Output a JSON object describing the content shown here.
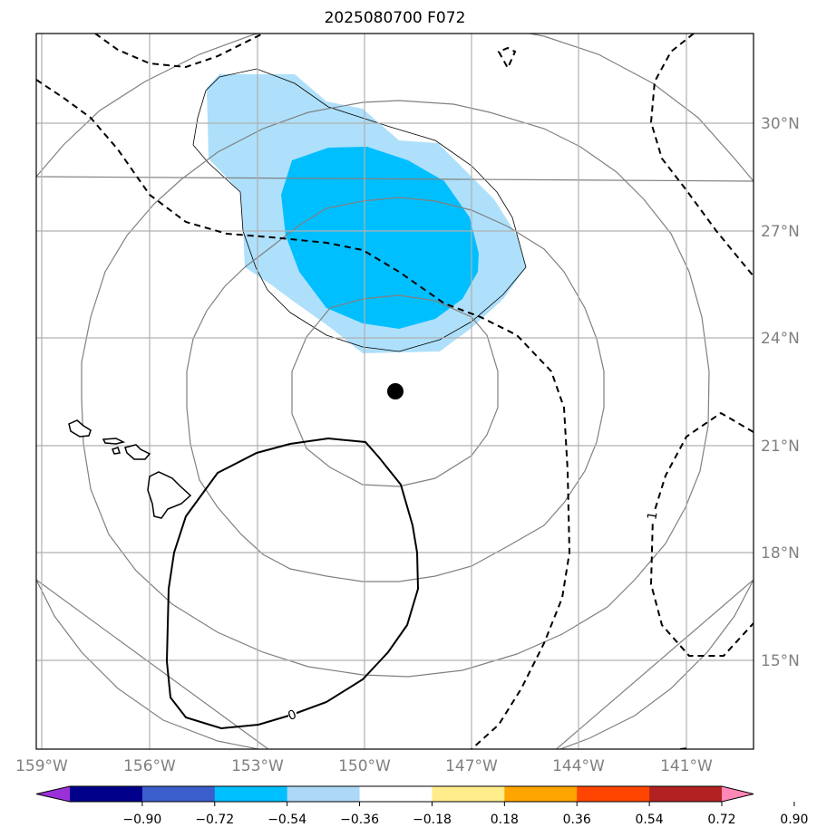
{
  "title": "2025080700 F072",
  "map": {
    "lon_labels": [
      "159°W",
      "156°W",
      "153°W",
      "150°W",
      "147°W",
      "144°W",
      "141°W"
    ],
    "lat_labels": [
      "30°N",
      "27°N",
      "24°N",
      "21°N",
      "18°N",
      "15°N"
    ],
    "storm_center": {
      "lon": -149.1,
      "lat": 22.5
    },
    "contour_labels": [
      "0",
      "1"
    ],
    "colors": {
      "gridline": "#b0b0b0",
      "axis_label": "#808080",
      "shade_light": "#aee0fb",
      "shade_dark": "#00bfff",
      "range_rings": "#808080"
    }
  },
  "colorbar": {
    "ticks": [
      "−0.90",
      "−0.72",
      "−0.54",
      "−0.36",
      "−0.18",
      "0.18",
      "0.36",
      "0.54",
      "0.72",
      "0.90"
    ],
    "colors": [
      "#9b30d9",
      "#00008b",
      "#3a5fcd",
      "#00bfff",
      "#add8f7",
      "#ffffff",
      "#ffec8b",
      "#ffa500",
      "#ff4500",
      "#b22222",
      "#ff88b8"
    ]
  }
}
